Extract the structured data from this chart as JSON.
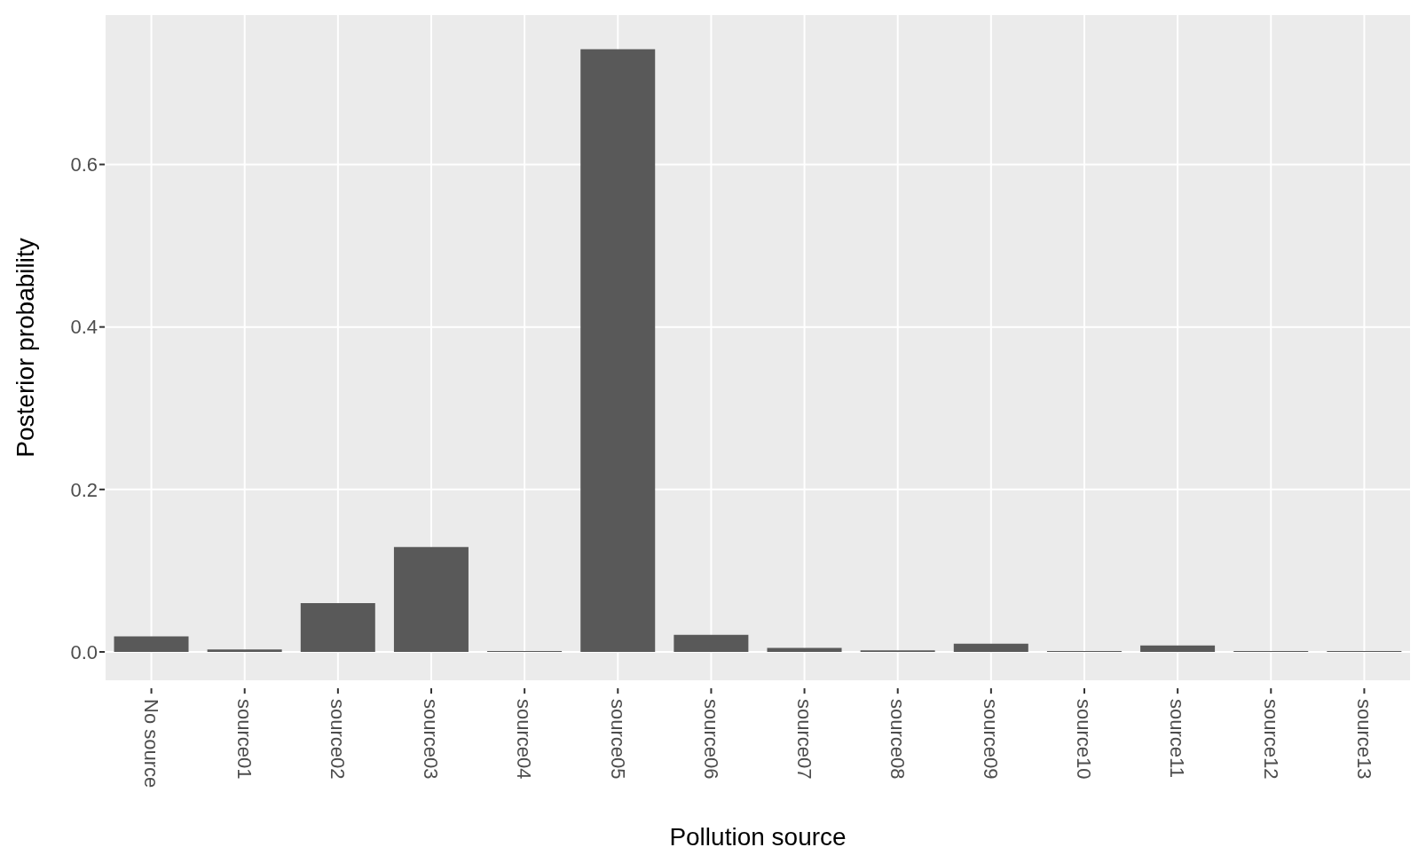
{
  "chart_data": {
    "type": "bar",
    "xlabel": "Pollution source",
    "ylabel": "Posterior probability",
    "categories": [
      "No source",
      "source01",
      "source02",
      "source03",
      "source04",
      "source05",
      "source06",
      "source07",
      "source08",
      "source09",
      "source10",
      "source11",
      "source12",
      "source13"
    ],
    "values": [
      0.019,
      0.003,
      0.06,
      0.129,
      0.001,
      0.742,
      0.021,
      0.005,
      0.002,
      0.01,
      0.001,
      0.008,
      0.001,
      0.001
    ],
    "color": "#595959",
    "ylim": [
      -0.036,
      0.785
    ],
    "yticks": [
      {
        "value": 0,
        "label": "0.0"
      },
      {
        "value": 0.2,
        "label": "0.2"
      },
      {
        "value": 0.4,
        "label": "0.4"
      },
      {
        "value": 0.6,
        "label": "0.6"
      }
    ],
    "grid": true
  }
}
